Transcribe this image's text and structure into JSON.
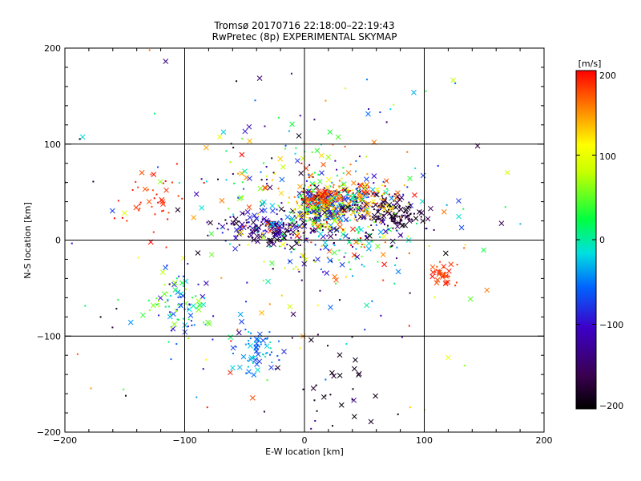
{
  "chart_data": {
    "type": "scatter",
    "title": "Tromsø 20170716 22:18:00–22:19:43",
    "subtitle": "RwPretec (8p) EXPERIMENTAL SKYMAP",
    "xlabel": "E-W location [km]",
    "ylabel": "N-S location [km]",
    "xlim": [
      -200,
      200
    ],
    "ylim": [
      -200,
      200
    ],
    "x_ticks": [
      "−200",
      "−100",
      "0",
      "100",
      "200"
    ],
    "y_ticks": [
      "200",
      "100",
      "0",
      "−100",
      "−200"
    ],
    "grid": true,
    "grid_lines_x": [
      -100,
      0,
      100
    ],
    "grid_lines_y": [
      -100,
      0,
      100
    ],
    "marker_types": [
      "dot",
      "x"
    ],
    "colorbar": {
      "label": "[m/s]",
      "range": [
        -200,
        200
      ],
      "ticks": [
        "200",
        "100",
        "0",
        "−100",
        "−200"
      ],
      "tick_values": [
        200,
        100,
        0,
        -100,
        -200
      ],
      "colormap": "rainbow (black → purple → blue → cyan → green → yellow → orange → red)"
    },
    "clusters": [
      {
        "name": "",
        "x": 15,
        "y": 35,
        "sx": 10,
        "sy": 10,
        "vmin": -200,
        "vmax": 200
      },
      {
        "name": "",
        "x": 45,
        "y": 40,
        "sx": 18,
        "sy": 8,
        "vmin": -200,
        "vmax": 200
      },
      {
        "name": "",
        "x": 75,
        "y": 25,
        "sx": 12,
        "sy": 8,
        "vmin": -200,
        "vmax": -150
      },
      {
        "name": "",
        "x": -30,
        "y": 12,
        "sx": 20,
        "sy": 8,
        "vmin": -200,
        "vmax": -80
      },
      {
        "name": "",
        "x": 20,
        "y": 5,
        "sx": 30,
        "sy": 20,
        "vmin": -200,
        "vmax": 200
      },
      {
        "name": "",
        "x": 15,
        "y": 45,
        "sx": 8,
        "sy": 4,
        "vmin": 150,
        "vmax": 200
      },
      {
        "name": "",
        "x": -105,
        "y": -70,
        "sx": 12,
        "sy": 18,
        "vmin": -120,
        "vmax": 80
      },
      {
        "name": "",
        "x": -40,
        "y": -115,
        "sx": 10,
        "sy": 12,
        "vmin": -80,
        "vmax": 0
      },
      {
        "name": "",
        "x": 115,
        "y": -35,
        "sx": 5,
        "sy": 7,
        "vmin": 170,
        "vmax": 200
      },
      {
        "name": "",
        "x": 55,
        "y": 45,
        "sx": 12,
        "sy": 10,
        "vmin": 100,
        "vmax": 200
      },
      {
        "name": "",
        "x": 0,
        "y": 60,
        "sx": 40,
        "sy": 35,
        "vmin": -200,
        "vmax": 200
      },
      {
        "name": "",
        "x": -130,
        "y": 40,
        "sx": 15,
        "sy": 15,
        "vmin": 170,
        "vmax": 200
      },
      {
        "name": "",
        "x": 20,
        "y": -150,
        "sx": 20,
        "sy": 25,
        "vmin": -200,
        "vmax": -170
      },
      {
        "name": "",
        "x": 0,
        "y": 0,
        "sx": 100,
        "sy": 90,
        "vmin": -200,
        "vmax": 200
      }
    ],
    "point_counts": [
      260,
      160,
      130,
      160,
      220,
      70,
      90,
      70,
      35,
      55,
      160,
      40,
      30,
      220
    ]
  }
}
